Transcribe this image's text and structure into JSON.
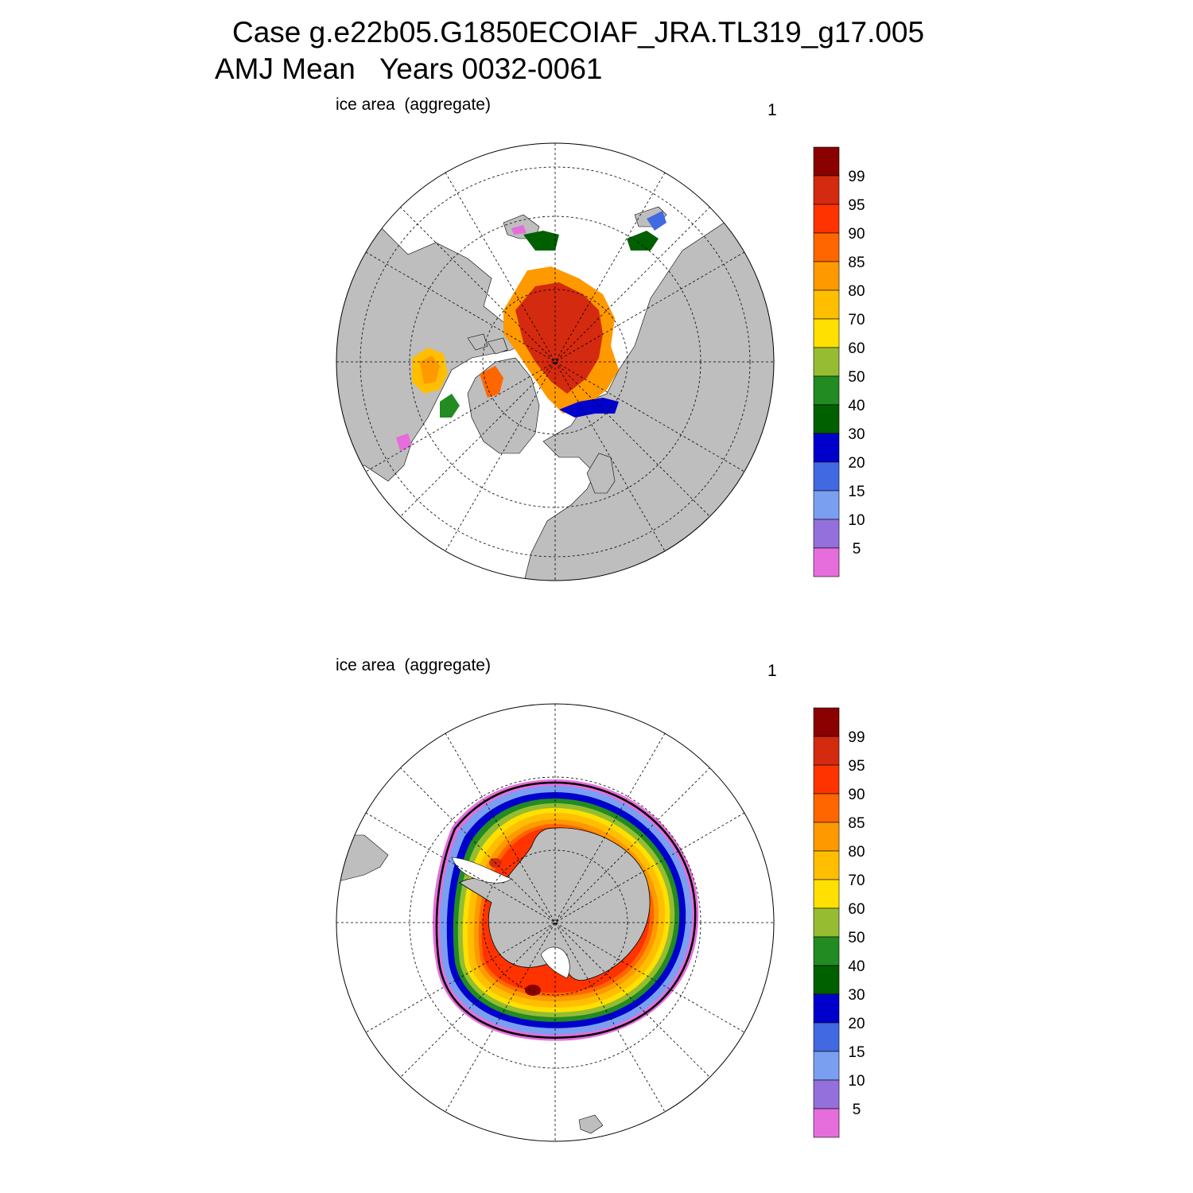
{
  "header": {
    "case_line": "Case g.e22b05.G1850ECOIAF_JRA.TL319_g17.005",
    "period_line": "AMJ Mean   Years 0032-0061"
  },
  "colorbar": {
    "levels": [
      "99",
      "95",
      "90",
      "85",
      "80",
      "70",
      "60",
      "50",
      "40",
      "30",
      "20",
      "15",
      "10",
      "5"
    ],
    "colors": [
      "#8b0000",
      "#d42a10",
      "#ff3300",
      "#ff6600",
      "#ff9900",
      "#ffbf00",
      "#ffe000",
      "#96bd31",
      "#228b22",
      "#006000",
      "#0000cd",
      "#4169e1",
      "#7b9ff0",
      "#9370db",
      "#e66ddc"
    ]
  },
  "panels": [
    {
      "id": "north",
      "label": "ice area  (aggregate)",
      "number": "1"
    },
    {
      "id": "south",
      "label": "ice area  (aggregate)",
      "number": "1"
    }
  ],
  "style": {
    "land": "#bebebe",
    "ocean": "#ffffff",
    "grid": "#000000"
  }
}
